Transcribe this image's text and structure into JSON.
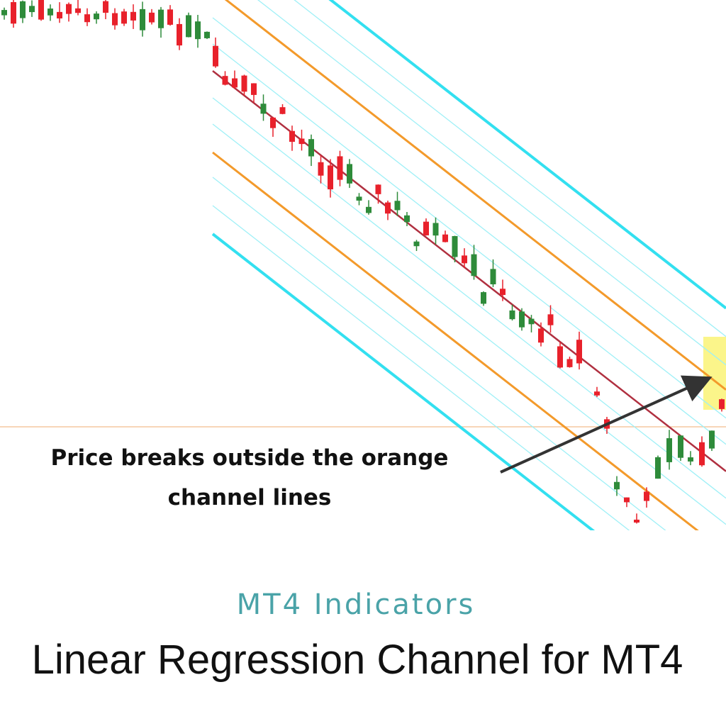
{
  "annotation": {
    "line1": "Price breaks outside the orange",
    "line2": "channel lines"
  },
  "subtitle": "MT4 Indicators",
  "title": "Linear Regression Channel for MT4"
}
